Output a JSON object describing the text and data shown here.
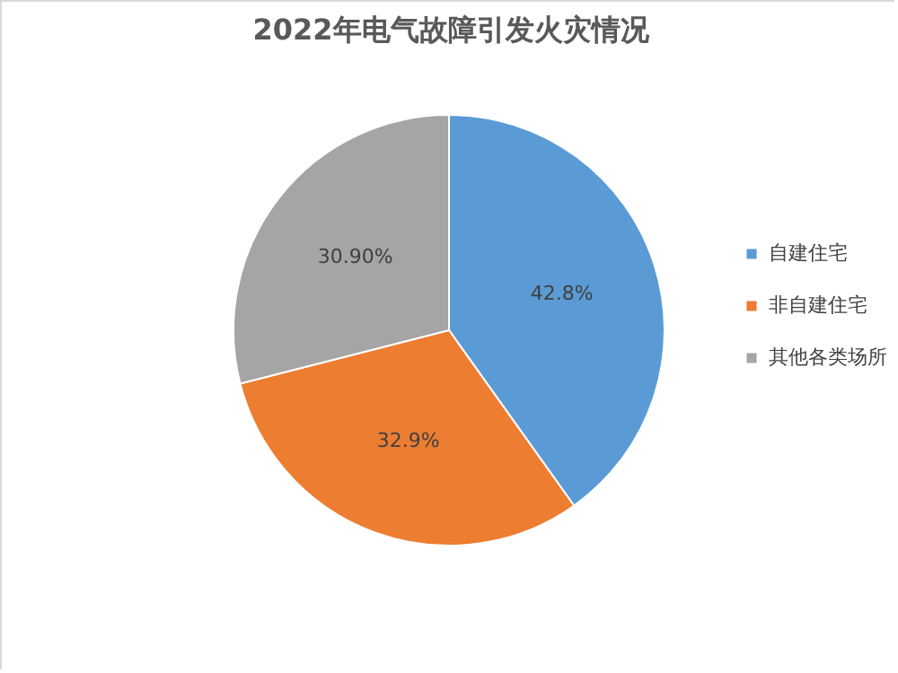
{
  "chart_data": {
    "type": "pie",
    "title": "2022年电气故障引发火灾情况",
    "categories": [
      "自建住宅",
      "非自建住宅",
      "其他各类场所"
    ],
    "values": [
      42.8,
      32.9,
      30.9
    ],
    "value_labels": [
      "42.8%",
      "32.9%",
      "30.90%"
    ],
    "colors": [
      "#5b9bd5",
      "#ed7d31",
      "#a5a5a5"
    ],
    "legend": "right"
  }
}
